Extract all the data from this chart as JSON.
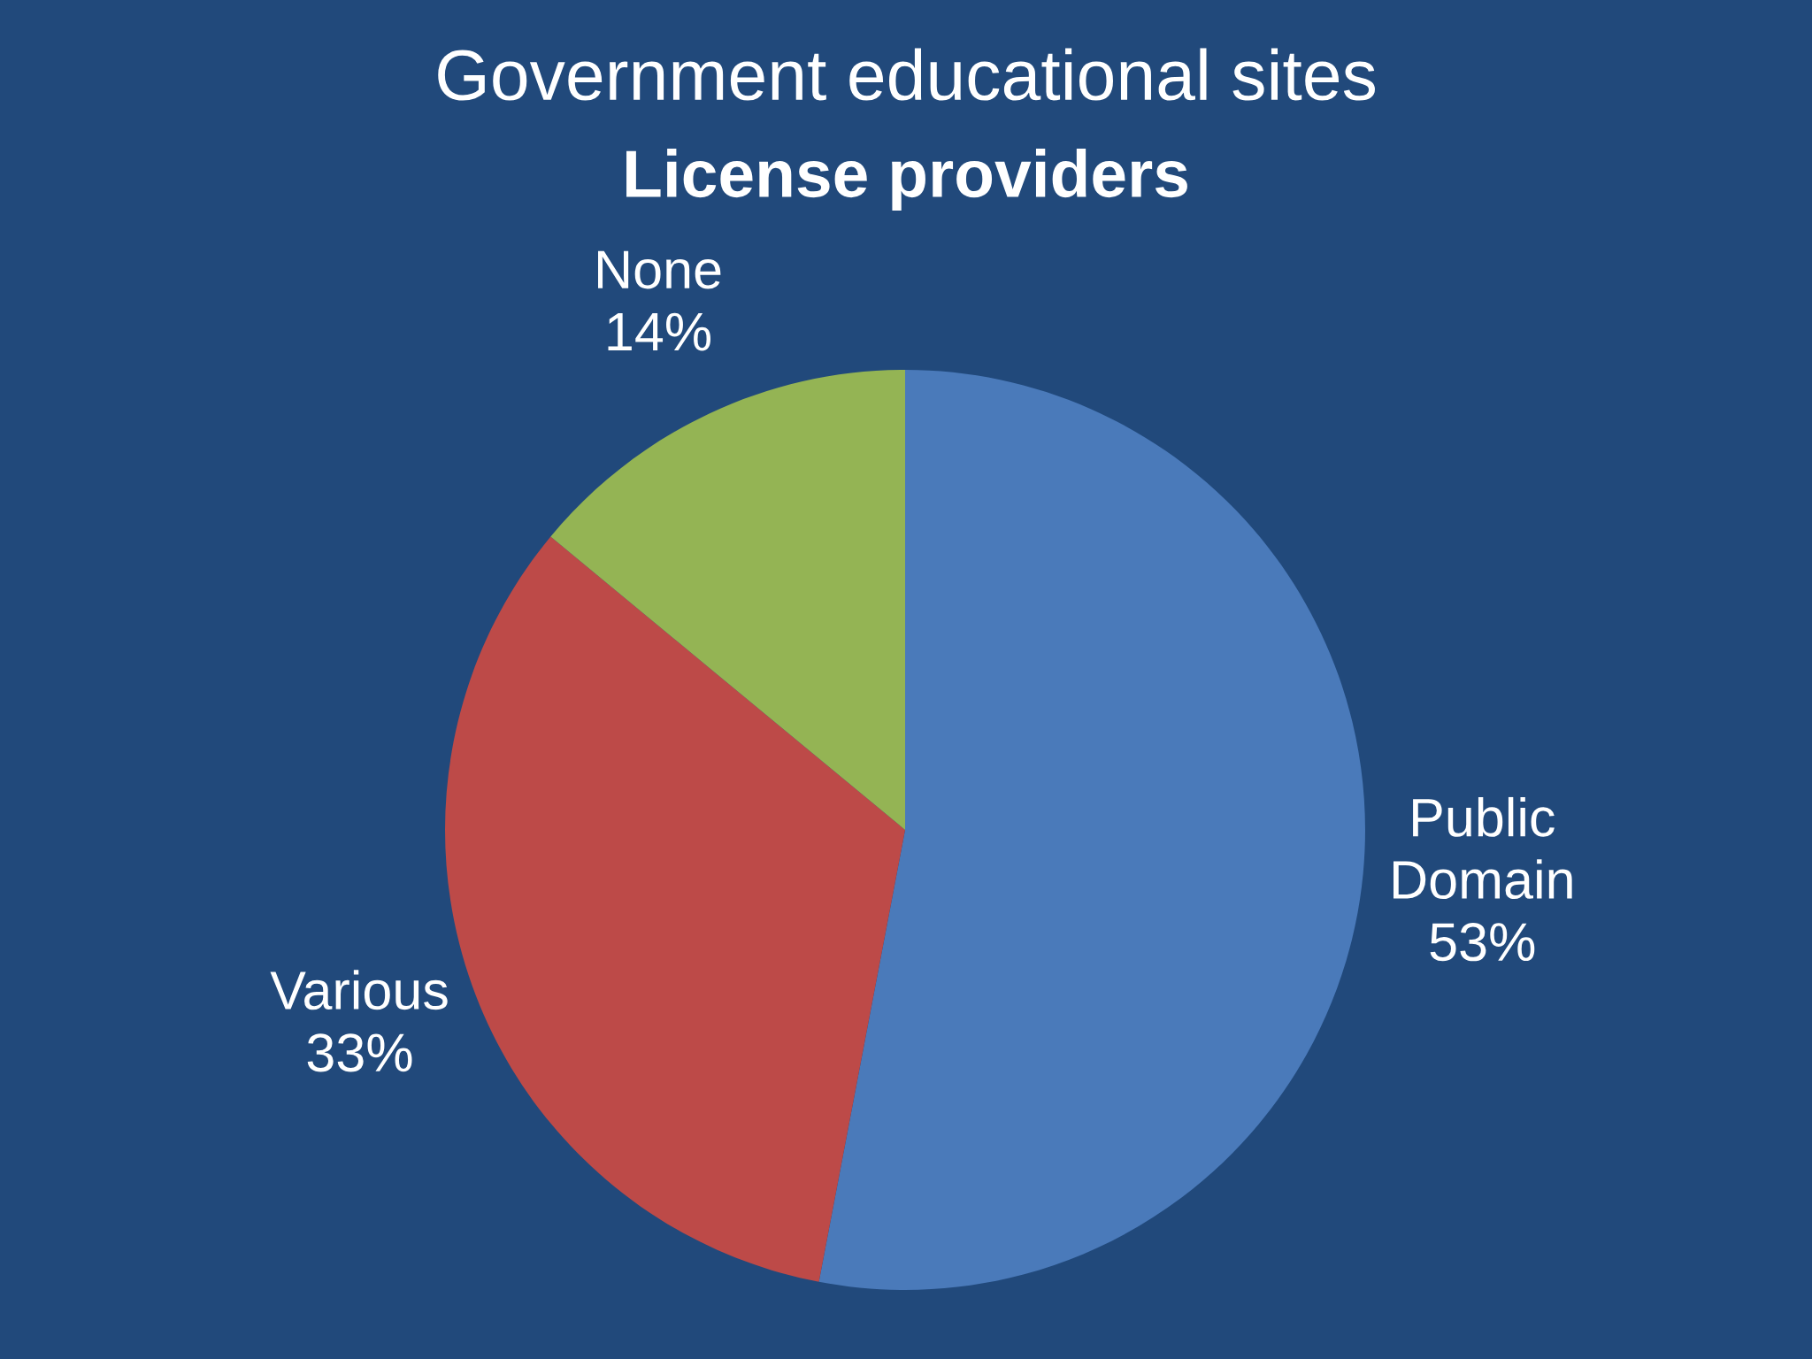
{
  "chart_data": {
    "type": "pie",
    "title": "Government educational sites",
    "subtitle": "License providers",
    "categories": [
      "Public Domain",
      "Various",
      "None"
    ],
    "values": [
      53,
      33,
      14
    ],
    "colors": [
      "#4a7aba",
      "#bd4a48",
      "#94b454"
    ],
    "value_labels": [
      "53%",
      "33%",
      "14%"
    ]
  }
}
